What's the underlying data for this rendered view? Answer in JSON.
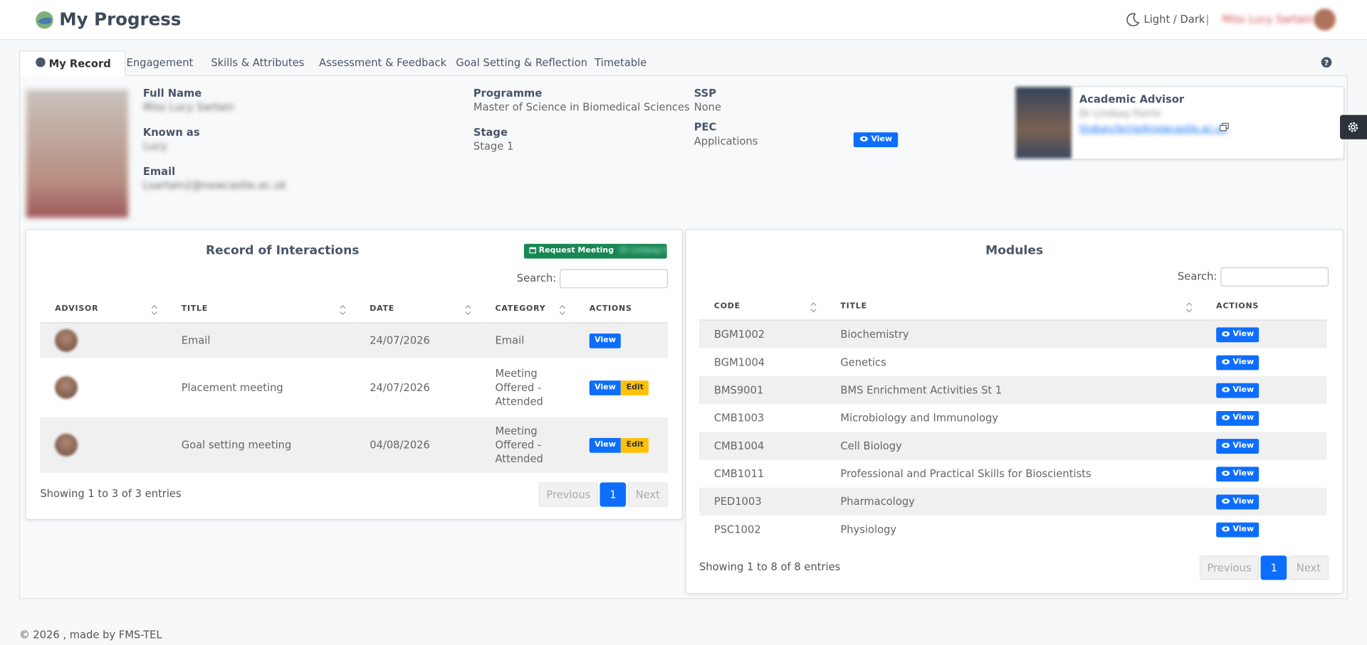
{
  "header": {
    "title": "My Progress",
    "theme_toggle": "Light / Dark",
    "separator": "|",
    "user_name": "Miss Lucy Sartain"
  },
  "tabs": [
    "My Record",
    "Engagement",
    "Skills & Attributes",
    "Assessment & Feedback",
    "Goal Setting & Reflection",
    "Timetable"
  ],
  "profile": {
    "full_name": {
      "label": "Full Name",
      "value": "Miss Lucy Sartain"
    },
    "known_as": {
      "label": "Known as",
      "value": "Lucy"
    },
    "email": {
      "label": "Email",
      "value": "Lsartain2@newcastle.ac.uk"
    },
    "programme": {
      "label": "Programme",
      "value": "Master of Science in Biomedical Sciences"
    },
    "stage": {
      "label": "Stage",
      "value": "Stage 1"
    },
    "ssp": {
      "label": "SSP",
      "value": "None"
    },
    "pec": {
      "label": "PEC",
      "value": "Applications",
      "button": "View"
    }
  },
  "advisor": {
    "heading": "Academic Advisor",
    "name": "Dr Lindsay Ferrie",
    "email": "lindsay.ferrie@newcastle.ac.uk"
  },
  "interactions": {
    "title": "Record of Interactions",
    "request_button": "Request Meeting",
    "request_with": "Dr Lindsay Ferrie",
    "search_label": "Search:",
    "columns": [
      "ADVISOR",
      "TITLE",
      "DATE",
      "CATEGORY",
      "ACTIONS"
    ],
    "rows": [
      {
        "title": "Email",
        "date": "24/07/2026",
        "category": "Email",
        "actions": [
          "View"
        ]
      },
      {
        "title": "Placement meeting",
        "date": "24/07/2026",
        "category": "Meeting Offered - Attended",
        "actions": [
          "View",
          "Edit"
        ]
      },
      {
        "title": "Goal setting meeting",
        "date": "04/08/2026",
        "category": "Meeting Offered - Attended",
        "actions": [
          "View",
          "Edit"
        ]
      }
    ],
    "info": "Showing 1 to 3 of 3 entries",
    "pagination": [
      "Previous",
      "1",
      "Next"
    ]
  },
  "modules": {
    "title": "Modules",
    "search_label": "Search:",
    "columns": [
      "CODE",
      "TITLE",
      "ACTIONS"
    ],
    "rows": [
      {
        "code": "BGM1002",
        "title": "Biochemistry",
        "action": "View"
      },
      {
        "code": "BGM1004",
        "title": "Genetics",
        "action": "View"
      },
      {
        "code": "BMS9001",
        "title": "BMS Enrichment Activities St 1",
        "action": "View"
      },
      {
        "code": "CMB1003",
        "title": "Microbiology and Immunology",
        "action": "View"
      },
      {
        "code": "CMB1004",
        "title": "Cell Biology",
        "action": "View"
      },
      {
        "code": "CMB1011",
        "title": "Professional and Practical Skills for Bioscientists",
        "action": "View"
      },
      {
        "code": "PED1003",
        "title": "Pharmacology",
        "action": "View"
      },
      {
        "code": "PSC1002",
        "title": "Physiology",
        "action": "View"
      }
    ],
    "info": "Showing 1 to 8 of 8 entries",
    "pagination": [
      "Previous",
      "1",
      "Next"
    ]
  },
  "footer": "© 2026 , made by FMS-TEL"
}
